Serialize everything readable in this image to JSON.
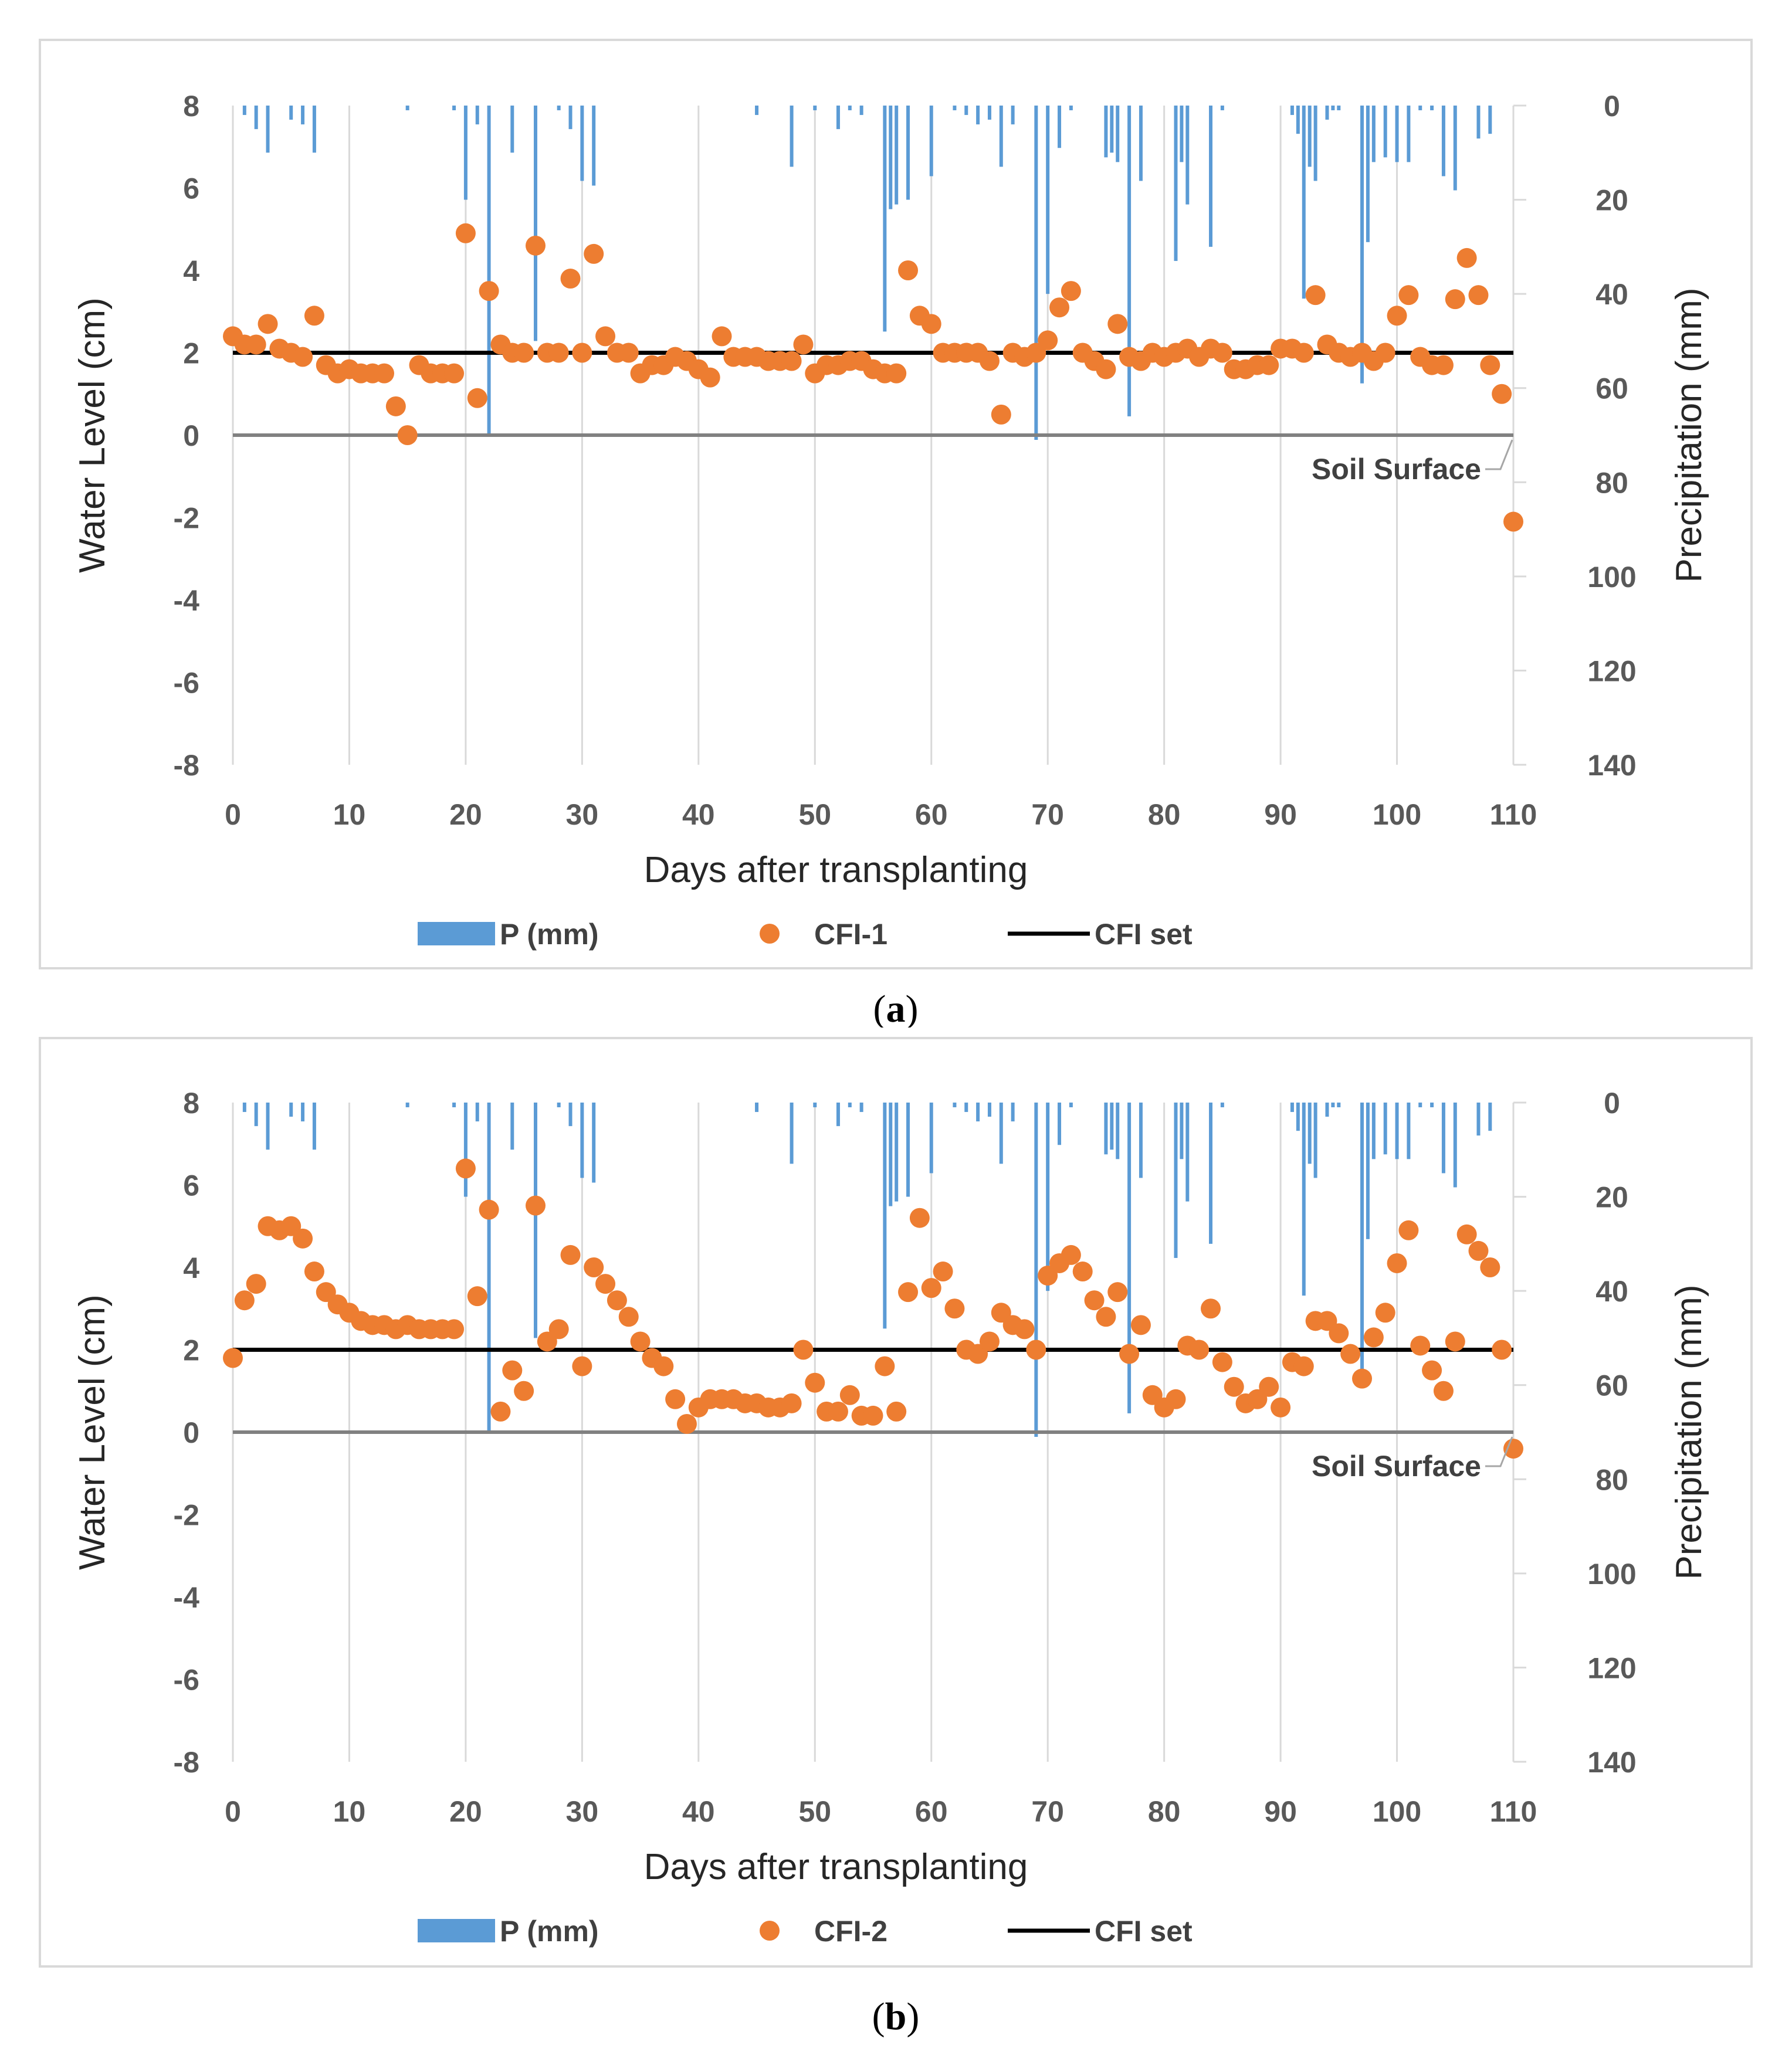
{
  "chart_data": [
    {
      "type": "scatter",
      "panel_label": "a",
      "xlabel": "Days after transplanting",
      "ylabel": "Water Level (cm)",
      "y2label": "Precipitation (mm)",
      "xlim": [
        0,
        110
      ],
      "ylim": [
        -8,
        8
      ],
      "y2lim": [
        140,
        0
      ],
      "xticks": [
        "0",
        "10",
        "20",
        "30",
        "40",
        "50",
        "60",
        "70",
        "80",
        "90",
        "100",
        "110"
      ],
      "yticks": [
        "8",
        "6",
        "4",
        "2",
        "0",
        "-2",
        "-4",
        "-6",
        "-8"
      ],
      "y2ticks": [
        "0",
        "20",
        "40",
        "60",
        "80",
        "100",
        "120",
        "140"
      ],
      "annotation": "Soil Surface",
      "legend": [
        "P (mm)",
        "CFI-1",
        "CFI set"
      ],
      "colors": {
        "precip": "#5b9bd5",
        "points": "#ed7d31",
        "set_line": "#000000",
        "soil_line": "#808080"
      },
      "cfi_set": 2,
      "soil_surface": 0,
      "precipitation": [
        [
          1,
          2
        ],
        [
          2,
          5
        ],
        [
          3,
          10
        ],
        [
          5,
          3
        ],
        [
          6,
          4
        ],
        [
          7,
          10
        ],
        [
          15,
          1
        ],
        [
          19,
          1
        ],
        [
          20,
          20
        ],
        [
          21,
          4
        ],
        [
          22,
          70
        ],
        [
          24,
          10
        ],
        [
          26,
          50
        ],
        [
          28,
          1
        ],
        [
          29,
          5
        ],
        [
          30,
          16
        ],
        [
          31,
          17
        ],
        [
          45,
          2
        ],
        [
          48,
          13
        ],
        [
          50,
          1
        ],
        [
          52,
          5
        ],
        [
          53,
          1
        ],
        [
          54,
          2
        ],
        [
          56,
          48
        ],
        [
          56.5,
          22
        ],
        [
          57,
          21
        ],
        [
          58,
          20
        ],
        [
          60,
          15
        ],
        [
          62,
          1
        ],
        [
          63,
          2
        ],
        [
          64,
          4
        ],
        [
          65,
          3
        ],
        [
          66,
          13
        ],
        [
          67,
          4
        ],
        [
          69,
          71
        ],
        [
          70,
          40
        ],
        [
          71,
          9
        ],
        [
          72,
          1
        ],
        [
          75,
          11
        ],
        [
          75.5,
          10
        ],
        [
          76,
          12
        ],
        [
          77,
          66
        ],
        [
          78,
          16
        ],
        [
          81,
          33
        ],
        [
          81.5,
          12
        ],
        [
          82,
          21
        ],
        [
          84,
          30
        ],
        [
          85,
          1
        ],
        [
          91,
          2
        ],
        [
          91.5,
          6
        ],
        [
          92,
          41
        ],
        [
          92.5,
          13
        ],
        [
          93,
          16
        ],
        [
          94,
          3
        ],
        [
          94.5,
          1
        ],
        [
          95,
          1
        ],
        [
          97,
          59
        ],
        [
          97.5,
          29
        ],
        [
          98,
          12
        ],
        [
          99,
          11
        ],
        [
          100,
          12
        ],
        [
          101,
          12
        ],
        [
          102,
          1
        ],
        [
          103,
          1
        ],
        [
          104,
          15
        ],
        [
          105,
          18
        ],
        [
          107,
          7
        ],
        [
          108,
          6
        ]
      ],
      "points": [
        [
          0,
          2.4
        ],
        [
          1,
          2.2
        ],
        [
          2,
          2.2
        ],
        [
          3,
          2.7
        ],
        [
          4,
          2.1
        ],
        [
          5,
          2.0
        ],
        [
          6,
          1.9
        ],
        [
          7,
          2.9
        ],
        [
          8,
          1.7
        ],
        [
          9,
          1.5
        ],
        [
          10,
          1.6
        ],
        [
          11,
          1.5
        ],
        [
          12,
          1.5
        ],
        [
          13,
          1.5
        ],
        [
          14,
          0.7
        ],
        [
          15,
          0.0
        ],
        [
          16,
          1.7
        ],
        [
          17,
          1.5
        ],
        [
          18,
          1.5
        ],
        [
          19,
          1.5
        ],
        [
          20,
          4.9
        ],
        [
          21,
          0.9
        ],
        [
          22,
          3.5
        ],
        [
          23,
          2.2
        ],
        [
          24,
          2.0
        ],
        [
          25,
          2.0
        ],
        [
          26,
          4.6
        ],
        [
          27,
          2.0
        ],
        [
          28,
          2.0
        ],
        [
          29,
          3.8
        ],
        [
          30,
          2.0
        ],
        [
          31,
          4.4
        ],
        [
          32,
          2.4
        ],
        [
          33,
          2.0
        ],
        [
          34,
          2.0
        ],
        [
          35,
          1.5
        ],
        [
          36,
          1.7
        ],
        [
          37,
          1.7
        ],
        [
          38,
          1.9
        ],
        [
          39,
          1.8
        ],
        [
          40,
          1.6
        ],
        [
          41,
          1.4
        ],
        [
          42,
          2.4
        ],
        [
          43,
          1.9
        ],
        [
          44,
          1.9
        ],
        [
          45,
          1.9
        ],
        [
          46,
          1.8
        ],
        [
          47,
          1.8
        ],
        [
          48,
          1.8
        ],
        [
          49,
          2.2
        ],
        [
          50,
          1.5
        ],
        [
          51,
          1.7
        ],
        [
          52,
          1.7
        ],
        [
          53,
          1.8
        ],
        [
          54,
          1.8
        ],
        [
          55,
          1.6
        ],
        [
          56,
          1.5
        ],
        [
          57,
          1.5
        ],
        [
          58,
          4.0
        ],
        [
          59,
          2.9
        ],
        [
          60,
          2.7
        ],
        [
          61,
          2.0
        ],
        [
          62,
          2.0
        ],
        [
          63,
          2.0
        ],
        [
          64,
          2.0
        ],
        [
          65,
          1.8
        ],
        [
          66,
          0.5
        ],
        [
          67,
          2.0
        ],
        [
          68,
          1.9
        ],
        [
          69,
          2.0
        ],
        [
          70,
          2.3
        ],
        [
          71,
          3.1
        ],
        [
          72,
          3.5
        ],
        [
          73,
          2.0
        ],
        [
          74,
          1.8
        ],
        [
          75,
          1.6
        ],
        [
          76,
          2.7
        ],
        [
          77,
          1.9
        ],
        [
          78,
          1.8
        ],
        [
          79,
          2.0
        ],
        [
          80,
          1.9
        ],
        [
          81,
          2.0
        ],
        [
          82,
          2.1
        ],
        [
          83,
          1.9
        ],
        [
          84,
          2.1
        ],
        [
          85,
          2.0
        ],
        [
          86,
          1.6
        ],
        [
          87,
          1.6
        ],
        [
          88,
          1.7
        ],
        [
          89,
          1.7
        ],
        [
          90,
          2.1
        ],
        [
          91,
          2.1
        ],
        [
          92,
          2.0
        ],
        [
          93,
          3.4
        ],
        [
          94,
          2.2
        ],
        [
          95,
          2.0
        ],
        [
          96,
          1.9
        ],
        [
          97,
          2.0
        ],
        [
          98,
          1.8
        ],
        [
          99,
          2.0
        ],
        [
          100,
          2.9
        ],
        [
          101,
          3.4
        ],
        [
          102,
          1.9
        ],
        [
          103,
          1.7
        ],
        [
          104,
          1.7
        ],
        [
          105,
          3.3
        ],
        [
          106,
          4.3
        ],
        [
          107,
          3.4
        ],
        [
          108,
          1.7
        ],
        [
          109,
          1.0
        ],
        [
          110,
          -2.1
        ]
      ]
    },
    {
      "type": "scatter",
      "panel_label": "b",
      "xlabel": "Days after transplanting",
      "ylabel": "Water Level (cm)",
      "y2label": "Precipitation (mm)",
      "xlim": [
        0,
        110
      ],
      "ylim": [
        -8,
        8
      ],
      "y2lim": [
        140,
        0
      ],
      "xticks": [
        "0",
        "10",
        "20",
        "30",
        "40",
        "50",
        "60",
        "70",
        "80",
        "90",
        "100",
        "110"
      ],
      "yticks": [
        "8",
        "6",
        "4",
        "2",
        "0",
        "-2",
        "-4",
        "-6",
        "-8"
      ],
      "y2ticks": [
        "0",
        "20",
        "40",
        "60",
        "80",
        "100",
        "120",
        "140"
      ],
      "annotation": "Soil Surface",
      "legend": [
        "P (mm)",
        "CFI-2",
        "CFI set"
      ],
      "colors": {
        "precip": "#5b9bd5",
        "points": "#ed7d31",
        "set_line": "#000000",
        "soil_line": "#808080"
      },
      "cfi_set": 2,
      "soil_surface": 0,
      "precipitation": [
        [
          1,
          2
        ],
        [
          2,
          5
        ],
        [
          3,
          10
        ],
        [
          5,
          3
        ],
        [
          6,
          4
        ],
        [
          7,
          10
        ],
        [
          15,
          1
        ],
        [
          19,
          1
        ],
        [
          20,
          20
        ],
        [
          21,
          4
        ],
        [
          22,
          70
        ],
        [
          24,
          10
        ],
        [
          26,
          50
        ],
        [
          28,
          1
        ],
        [
          29,
          5
        ],
        [
          30,
          16
        ],
        [
          31,
          17
        ],
        [
          45,
          2
        ],
        [
          48,
          13
        ],
        [
          50,
          1
        ],
        [
          52,
          5
        ],
        [
          53,
          1
        ],
        [
          54,
          2
        ],
        [
          56,
          48
        ],
        [
          56.5,
          22
        ],
        [
          57,
          21
        ],
        [
          58,
          20
        ],
        [
          60,
          15
        ],
        [
          62,
          1
        ],
        [
          63,
          2
        ],
        [
          64,
          4
        ],
        [
          65,
          3
        ],
        [
          66,
          13
        ],
        [
          67,
          4
        ],
        [
          69,
          71
        ],
        [
          70,
          40
        ],
        [
          71,
          9
        ],
        [
          72,
          1
        ],
        [
          75,
          11
        ],
        [
          75.5,
          10
        ],
        [
          76,
          12
        ],
        [
          77,
          66
        ],
        [
          78,
          16
        ],
        [
          81,
          33
        ],
        [
          81.5,
          12
        ],
        [
          82,
          21
        ],
        [
          84,
          30
        ],
        [
          85,
          1
        ],
        [
          91,
          2
        ],
        [
          91.5,
          6
        ],
        [
          92,
          41
        ],
        [
          92.5,
          13
        ],
        [
          93,
          16
        ],
        [
          94,
          3
        ],
        [
          94.5,
          1
        ],
        [
          95,
          1
        ],
        [
          97,
          59
        ],
        [
          97.5,
          29
        ],
        [
          98,
          12
        ],
        [
          99,
          11
        ],
        [
          100,
          12
        ],
        [
          101,
          12
        ],
        [
          102,
          1
        ],
        [
          103,
          1
        ],
        [
          104,
          15
        ],
        [
          105,
          18
        ],
        [
          107,
          7
        ],
        [
          108,
          6
        ]
      ],
      "points": [
        [
          0,
          1.8
        ],
        [
          1,
          3.2
        ],
        [
          2,
          3.6
        ],
        [
          3,
          5.0
        ],
        [
          4,
          4.9
        ],
        [
          5,
          5.0
        ],
        [
          6,
          4.7
        ],
        [
          7,
          3.9
        ],
        [
          8,
          3.4
        ],
        [
          9,
          3.1
        ],
        [
          10,
          2.9
        ],
        [
          11,
          2.7
        ],
        [
          12,
          2.6
        ],
        [
          13,
          2.6
        ],
        [
          14,
          2.5
        ],
        [
          15,
          2.6
        ],
        [
          16,
          2.5
        ],
        [
          17,
          2.5
        ],
        [
          18,
          2.5
        ],
        [
          19,
          2.5
        ],
        [
          20,
          6.4
        ],
        [
          21,
          3.3
        ],
        [
          22,
          5.4
        ],
        [
          23,
          0.5
        ],
        [
          24,
          1.5
        ],
        [
          25,
          1.0
        ],
        [
          26,
          5.5
        ],
        [
          27,
          2.2
        ],
        [
          28,
          2.5
        ],
        [
          29,
          4.3
        ],
        [
          30,
          1.6
        ],
        [
          31,
          4.0
        ],
        [
          32,
          3.6
        ],
        [
          33,
          3.2
        ],
        [
          34,
          2.8
        ],
        [
          35,
          2.2
        ],
        [
          36,
          1.8
        ],
        [
          37,
          1.6
        ],
        [
          38,
          0.8
        ],
        [
          39,
          0.2
        ],
        [
          40,
          0.6
        ],
        [
          41,
          0.8
        ],
        [
          42,
          0.8
        ],
        [
          43,
          0.8
        ],
        [
          44,
          0.7
        ],
        [
          45,
          0.7
        ],
        [
          46,
          0.6
        ],
        [
          47,
          0.6
        ],
        [
          48,
          0.7
        ],
        [
          49,
          2.0
        ],
        [
          50,
          1.2
        ],
        [
          51,
          0.5
        ],
        [
          52,
          0.5
        ],
        [
          53,
          0.9
        ],
        [
          54,
          0.4
        ],
        [
          55,
          0.4
        ],
        [
          56,
          1.6
        ],
        [
          57,
          0.5
        ],
        [
          58,
          3.4
        ],
        [
          59,
          5.2
        ],
        [
          60,
          3.5
        ],
        [
          61,
          3.9
        ],
        [
          62,
          3.0
        ],
        [
          63,
          2.0
        ],
        [
          64,
          1.9
        ],
        [
          65,
          2.2
        ],
        [
          66,
          2.9
        ],
        [
          67,
          2.6
        ],
        [
          68,
          2.5
        ],
        [
          69,
          2.0
        ],
        [
          70,
          3.8
        ],
        [
          71,
          4.1
        ],
        [
          72,
          4.3
        ],
        [
          73,
          3.9
        ],
        [
          74,
          3.2
        ],
        [
          75,
          2.8
        ],
        [
          76,
          3.4
        ],
        [
          77,
          1.9
        ],
        [
          78,
          2.6
        ],
        [
          79,
          0.9
        ],
        [
          80,
          0.6
        ],
        [
          81,
          0.8
        ],
        [
          82,
          2.1
        ],
        [
          83,
          2.0
        ],
        [
          84,
          3.0
        ],
        [
          85,
          1.7
        ],
        [
          86,
          1.1
        ],
        [
          87,
          0.7
        ],
        [
          88,
          0.8
        ],
        [
          89,
          1.1
        ],
        [
          90,
          0.6
        ],
        [
          91,
          1.7
        ],
        [
          92,
          1.6
        ],
        [
          93,
          2.7
        ],
        [
          94,
          2.7
        ],
        [
          95,
          2.4
        ],
        [
          96,
          1.9
        ],
        [
          97,
          1.3
        ],
        [
          98,
          2.3
        ],
        [
          99,
          2.9
        ],
        [
          100,
          4.1
        ],
        [
          101,
          4.9
        ],
        [
          102,
          2.1
        ],
        [
          103,
          1.5
        ],
        [
          104,
          1.0
        ],
        [
          105,
          2.2
        ],
        [
          106,
          4.8
        ],
        [
          107,
          4.4
        ],
        [
          108,
          4.0
        ],
        [
          109,
          2.0
        ],
        [
          110,
          -0.4
        ]
      ]
    }
  ]
}
